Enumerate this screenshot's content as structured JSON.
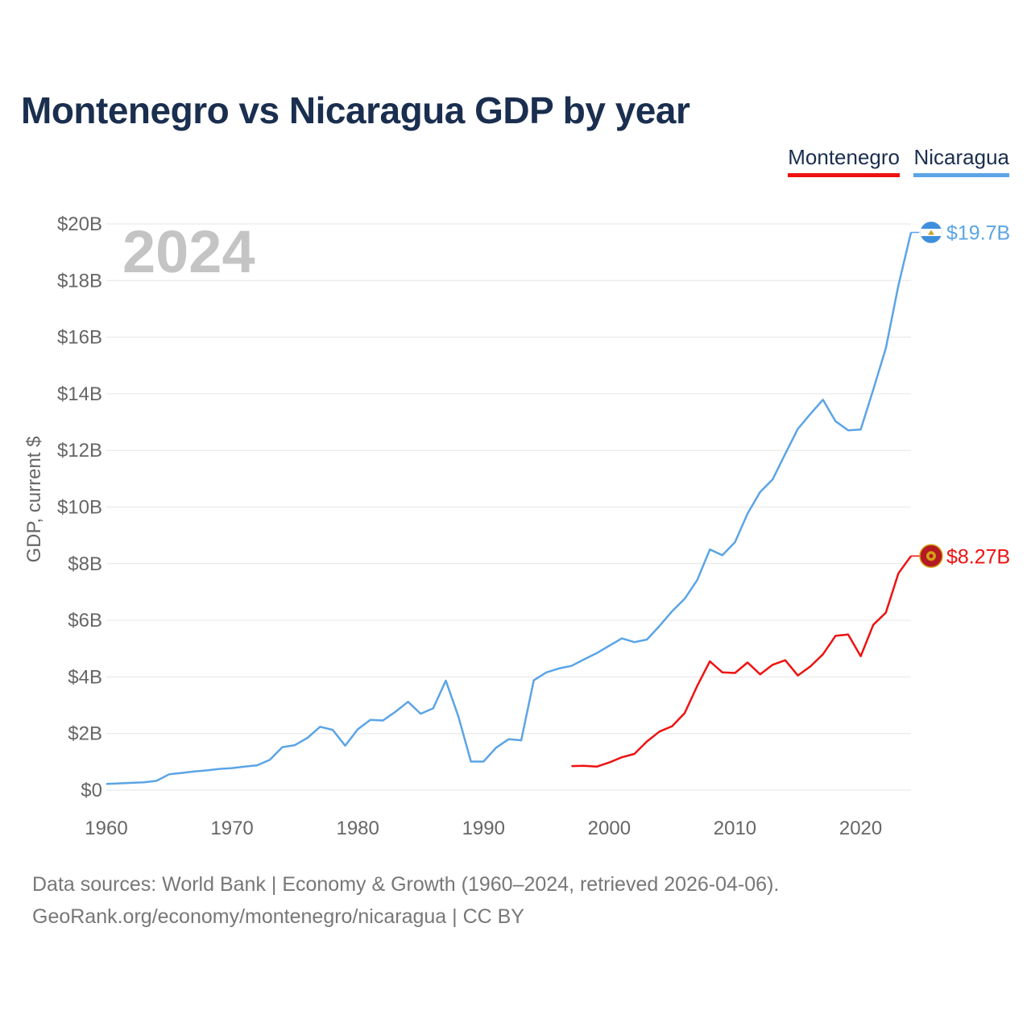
{
  "title": "Montenegro vs Nicaragua GDP by year",
  "legend": [
    {
      "name": "Montenegro",
      "color": "#ee1111"
    },
    {
      "name": "Nicaragua",
      "color": "#5ba4e6"
    }
  ],
  "year_watermark": "2024",
  "sources": {
    "line1": "Data sources: World Bank | Economy & Growth (1960–2024, retrieved 2026-04-06).",
    "line2": "GeoRank.org/economy/montenegro/nicaragua | CC BY"
  },
  "chart_data": {
    "type": "line",
    "title": "Montenegro vs Nicaragua GDP by year",
    "xlabel": "",
    "ylabel": "GDP, current $",
    "xlim": [
      1960,
      2024
    ],
    "ylim": [
      0,
      20
    ],
    "y_unit": "billion US$",
    "x_ticks": [
      1960,
      1970,
      1980,
      1990,
      2000,
      2010,
      2020
    ],
    "y_ticks": [
      {
        "value": 0,
        "label": "$0"
      },
      {
        "value": 2,
        "label": "$2B"
      },
      {
        "value": 4,
        "label": "$4B"
      },
      {
        "value": 6,
        "label": "$6B"
      },
      {
        "value": 8,
        "label": "$8B"
      },
      {
        "value": 10,
        "label": "$10B"
      },
      {
        "value": 12,
        "label": "$12B"
      },
      {
        "value": 14,
        "label": "$14B"
      },
      {
        "value": 16,
        "label": "$16B"
      },
      {
        "value": 18,
        "label": "$18B"
      },
      {
        "value": 20,
        "label": "$20B"
      }
    ],
    "grid": true,
    "legend_position": "top-right",
    "series": [
      {
        "name": "Nicaragua",
        "color": "#5ba4e6",
        "end_label": "$19.7B",
        "x": [
          1960,
          1961,
          1962,
          1963,
          1964,
          1965,
          1966,
          1967,
          1968,
          1969,
          1970,
          1971,
          1972,
          1973,
          1974,
          1975,
          1976,
          1977,
          1978,
          1979,
          1980,
          1981,
          1982,
          1983,
          1984,
          1985,
          1986,
          1987,
          1988,
          1989,
          1990,
          1991,
          1992,
          1993,
          1994,
          1995,
          1996,
          1997,
          1998,
          1999,
          2000,
          2001,
          2002,
          2003,
          2004,
          2005,
          2006,
          2007,
          2008,
          2009,
          2010,
          2011,
          2012,
          2013,
          2014,
          2015,
          2016,
          2017,
          2018,
          2019,
          2020,
          2021,
          2022,
          2023,
          2024
        ],
        "values": [
          0.22,
          0.24,
          0.26,
          0.28,
          0.33,
          0.56,
          0.61,
          0.66,
          0.7,
          0.75,
          0.78,
          0.83,
          0.88,
          1.07,
          1.52,
          1.59,
          1.85,
          2.24,
          2.13,
          1.57,
          2.15,
          2.48,
          2.46,
          2.77,
          3.12,
          2.7,
          2.89,
          3.87,
          2.6,
          1.01,
          1.01,
          1.5,
          1.8,
          1.76,
          3.88,
          4.16,
          4.3,
          4.39,
          4.62,
          4.84,
          5.1,
          5.36,
          5.23,
          5.32,
          5.8,
          6.32,
          6.76,
          7.42,
          8.5,
          8.3,
          8.76,
          9.77,
          10.53,
          10.98,
          11.88,
          12.76,
          13.29,
          13.79,
          13.03,
          12.71,
          12.74,
          14.15,
          15.61,
          17.83,
          19.7
        ]
      },
      {
        "name": "Montenegro",
        "color": "#ee1111",
        "end_label": "$8.27B",
        "x": [
          1997,
          1998,
          1999,
          2000,
          2001,
          2002,
          2003,
          2004,
          2005,
          2006,
          2007,
          2008,
          2009,
          2010,
          2011,
          2012,
          2013,
          2014,
          2015,
          2016,
          2017,
          2018,
          2019,
          2020,
          2021,
          2022,
          2023,
          2024
        ],
        "values": [
          0.85,
          0.86,
          0.83,
          0.98,
          1.16,
          1.28,
          1.72,
          2.07,
          2.26,
          2.72,
          3.68,
          4.55,
          4.16,
          4.14,
          4.51,
          4.09,
          4.43,
          4.59,
          4.05,
          4.37,
          4.8,
          5.45,
          5.5,
          4.73,
          5.84,
          6.27,
          7.66,
          8.27
        ]
      }
    ]
  }
}
